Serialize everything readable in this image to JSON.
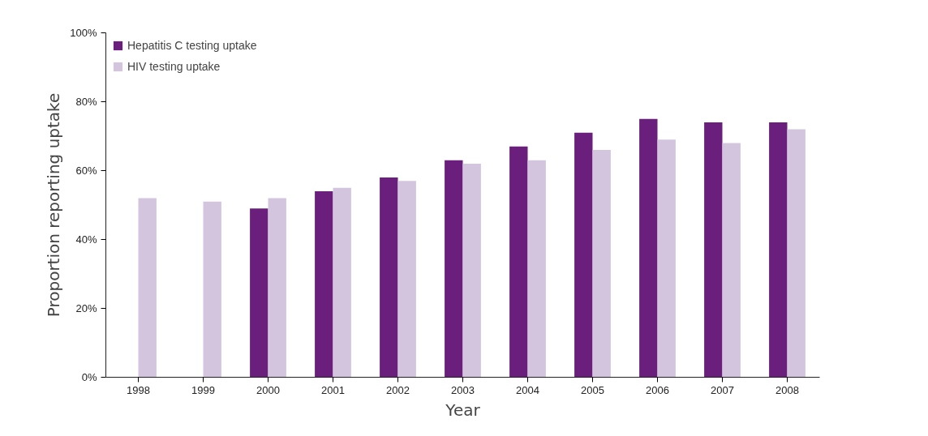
{
  "chart_data": {
    "type": "bar",
    "xlabel": "Year",
    "ylabel": "Proportion reporting uptake",
    "categories": [
      "1998",
      "1999",
      "2000",
      "2001",
      "2002",
      "2003",
      "2004",
      "2005",
      "2006",
      "2007",
      "2008"
    ],
    "series": [
      {
        "name": "Hepatitis C testing uptake",
        "color": "#6b1f7c",
        "values": [
          null,
          null,
          49,
          54,
          58,
          63,
          67,
          71,
          75,
          74,
          74
        ]
      },
      {
        "name": "HIV testing uptake",
        "color": "#d4c5df",
        "values": [
          52,
          51,
          52,
          55,
          57,
          62,
          63,
          66,
          69,
          68,
          72
        ]
      }
    ],
    "ylim": [
      0,
      100
    ],
    "yticks": [
      {
        "value": 0,
        "label": "0%"
      },
      {
        "value": 20,
        "label": "20%"
      },
      {
        "value": 40,
        "label": "40%"
      },
      {
        "value": 60,
        "label": "60%"
      },
      {
        "value": 80,
        "label": "80%"
      },
      {
        "value": 100,
        "label": "100%"
      }
    ],
    "grid": false,
    "legend": "top left"
  }
}
